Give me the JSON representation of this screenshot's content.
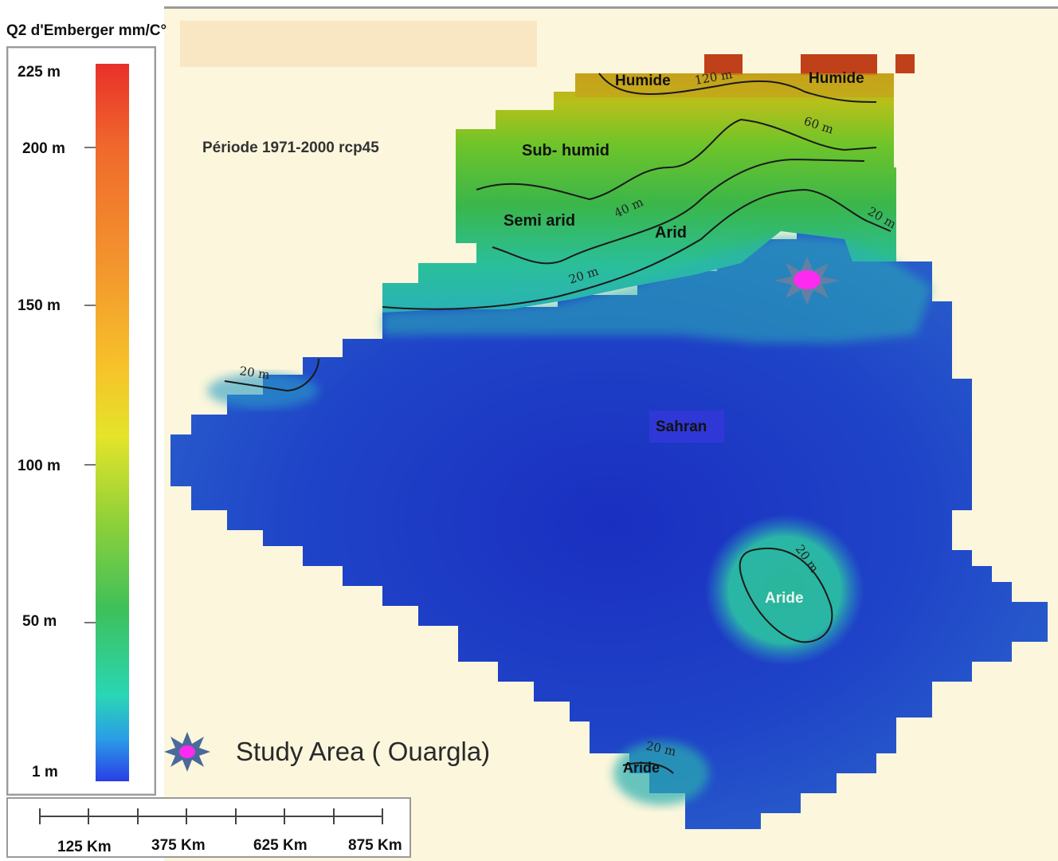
{
  "legend": {
    "title": "Q2 d'Emberger mm/C°",
    "ticks": [
      {
        "label": "225 m",
        "value": 225
      },
      {
        "label": "200 m",
        "value": 200
      },
      {
        "label": "150 m",
        "value": 150
      },
      {
        "label": "100 m",
        "value": 100
      },
      {
        "label": "50 m",
        "value": 50
      },
      {
        "label": "1 m",
        "value": 1
      }
    ]
  },
  "period": "Période 1971-2000 rcp45",
  "zones": {
    "humide_left": "Humide",
    "humide_right": "Humide",
    "sub_humid": "Sub- humid",
    "semi_arid": "Semi arid",
    "arid": "Arid",
    "sahran": "Sahran",
    "aride_center": "Aride",
    "aride_south": "Aride"
  },
  "contours": {
    "c120": "120 m",
    "c60": "60 m",
    "c40": "40 m",
    "c20_a": "20 m",
    "c20_b": "20 m",
    "c20_c": "20 m",
    "c20_d": "20 m",
    "c20_e": "20 m"
  },
  "study_area": {
    "label": "Study Area ( Ouargla)",
    "marker_icon": "star-marker-icon",
    "colors": {
      "star": "#5a7a9a",
      "center": "#ff2af0"
    }
  },
  "scale_bar": {
    "labels": [
      "125 Km",
      "375 Km",
      "625 Km",
      "875 Km"
    ]
  }
}
